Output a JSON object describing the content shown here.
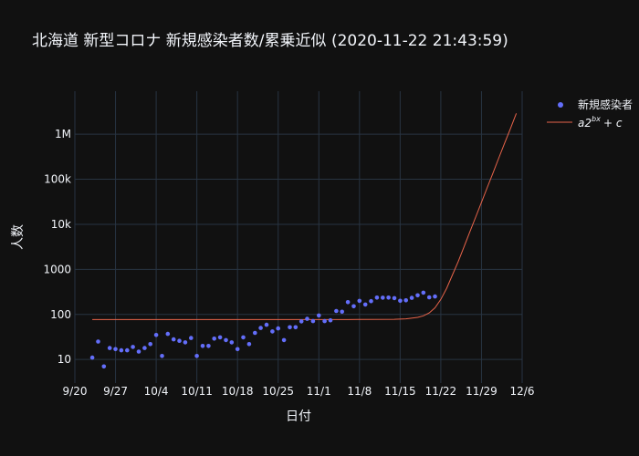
{
  "chart_data": {
    "type": "scatter",
    "title": "北海道 新型コロナ 新規感染者数/累乗近似 (2020-11-22 21:43:59)",
    "xlabel": "日付",
    "ylabel": "人数",
    "y_scale": "log",
    "xlim": [
      "2020-09-20",
      "2020-12-06"
    ],
    "ylim": [
      3,
      9000000
    ],
    "x_ticks": [
      "9/20",
      "9/27",
      "10/4",
      "10/11",
      "10/18",
      "10/25",
      "11/1",
      "11/8",
      "11/15",
      "11/22",
      "11/29",
      "12/6"
    ],
    "y_ticks": [
      "10",
      "100",
      "1000",
      "10k",
      "100k",
      "1M"
    ],
    "grid": true,
    "legend_position": "top-right",
    "series": [
      {
        "name": "新規感染者",
        "type": "scatter",
        "color": "#636efa",
        "points": [
          [
            "2020-09-23",
            11
          ],
          [
            "2020-09-24",
            25
          ],
          [
            "2020-09-25",
            7
          ],
          [
            "2020-09-26",
            18
          ],
          [
            "2020-09-27",
            17
          ],
          [
            "2020-09-28",
            16
          ],
          [
            "2020-09-29",
            16
          ],
          [
            "2020-09-30",
            19
          ],
          [
            "2020-10-01",
            15
          ],
          [
            "2020-10-02",
            18
          ],
          [
            "2020-10-03",
            22
          ],
          [
            "2020-10-04",
            35
          ],
          [
            "2020-10-05",
            12
          ],
          [
            "2020-10-06",
            37
          ],
          [
            "2020-10-07",
            28
          ],
          [
            "2020-10-08",
            26
          ],
          [
            "2020-10-09",
            24
          ],
          [
            "2020-10-10",
            30
          ],
          [
            "2020-10-11",
            12
          ],
          [
            "2020-10-12",
            20
          ],
          [
            "2020-10-13",
            20
          ],
          [
            "2020-10-14",
            29
          ],
          [
            "2020-10-15",
            31
          ],
          [
            "2020-10-16",
            27
          ],
          [
            "2020-10-17",
            24
          ],
          [
            "2020-10-18",
            17
          ],
          [
            "2020-10-19",
            31
          ],
          [
            "2020-10-20",
            22
          ],
          [
            "2020-10-21",
            39
          ],
          [
            "2020-10-22",
            50
          ],
          [
            "2020-10-23",
            59
          ],
          [
            "2020-10-24",
            42
          ],
          [
            "2020-10-25",
            49
          ],
          [
            "2020-10-26",
            27
          ],
          [
            "2020-10-27",
            52
          ],
          [
            "2020-10-28",
            52
          ],
          [
            "2020-10-29",
            70
          ],
          [
            "2020-10-30",
            80
          ],
          [
            "2020-10-31",
            71
          ],
          [
            "2020-11-01",
            95
          ],
          [
            "2020-11-02",
            71
          ],
          [
            "2020-11-03",
            74
          ],
          [
            "2020-11-04",
            119
          ],
          [
            "2020-11-05",
            115
          ],
          [
            "2020-11-06",
            187
          ],
          [
            "2020-11-07",
            152
          ],
          [
            "2020-11-08",
            200
          ],
          [
            "2020-11-09",
            166
          ],
          [
            "2020-11-10",
            197
          ],
          [
            "2020-11-11",
            236
          ],
          [
            "2020-11-12",
            235
          ],
          [
            "2020-11-13",
            236
          ],
          [
            "2020-11-14",
            230
          ],
          [
            "2020-11-15",
            201
          ],
          [
            "2020-11-16",
            206
          ],
          [
            "2020-11-17",
            233
          ],
          [
            "2020-11-18",
            266
          ],
          [
            "2020-11-19",
            304
          ],
          [
            "2020-11-20",
            240
          ],
          [
            "2020-11-21",
            250
          ]
        ]
      },
      {
        "name": "a2^{bx} + c",
        "type": "line",
        "color": "#e8644a",
        "points": [
          [
            "2020-09-23",
            77
          ],
          [
            "2020-10-10",
            77
          ],
          [
            "2020-10-25",
            77
          ],
          [
            "2020-11-08",
            77.3
          ],
          [
            "2020-11-14",
            78
          ],
          [
            "2020-11-16",
            80
          ],
          [
            "2020-11-18",
            86
          ],
          [
            "2020-11-19",
            93
          ],
          [
            "2020-11-20",
            108
          ],
          [
            "2020-11-21",
            140
          ],
          [
            "2020-11-22",
            215
          ],
          [
            "2020-11-23",
            380
          ],
          [
            "2020-11-24",
            750
          ],
          [
            "2020-11-25",
            1500
          ],
          [
            "2020-11-26",
            3200
          ],
          [
            "2020-11-27",
            6800
          ],
          [
            "2020-11-28",
            14500
          ],
          [
            "2020-11-29",
            31000
          ],
          [
            "2020-11-30",
            66000
          ],
          [
            "2020-12-01",
            140000
          ],
          [
            "2020-12-02",
            300000
          ],
          [
            "2020-12-03",
            640000
          ],
          [
            "2020-12-04",
            1350000
          ],
          [
            "2020-12-05",
            2900000
          ]
        ]
      }
    ]
  }
}
